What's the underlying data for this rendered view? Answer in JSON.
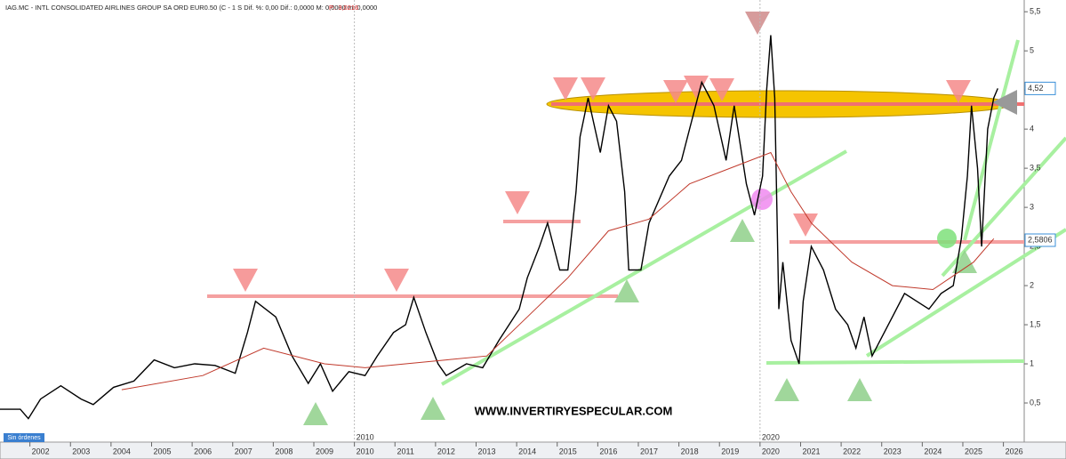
{
  "chart_data": {
    "type": "line",
    "title": "IAG.MC - INTL CONSOLIDATED AIRLINES GROUP SA ORD EUR0.50 (C - 1 S Dif. %: 0,00 Dif.: 0,0000 M: 0,0000 m: 0,0000",
    "price_note": "P.: 3,0216",
    "watermark": "WWW.INVERTIRYESPECULAR.COM",
    "orders": "Sin órdenes",
    "decade_marks": [
      {
        "value": 2010,
        "label": "2010"
      },
      {
        "value": 2020,
        "label": "2020"
      }
    ],
    "xlim": [
      2001,
      2026.25
    ],
    "xticks": [
      2002,
      2003,
      2004,
      2005,
      2006,
      2007,
      2008,
      2009,
      2010,
      2011,
      2012,
      2013,
      2014,
      2015,
      2016,
      2017,
      2018,
      2019,
      2020,
      2021,
      2022,
      2023,
      2024,
      2025,
      2026
    ],
    "ylim": [
      0,
      5.65
    ],
    "yticks": [
      {
        "value": 0.5,
        "label": "0,5"
      },
      1,
      {
        "value": 1.5,
        "label": "1,5"
      },
      2,
      {
        "value": 2.5,
        "label": "2,5"
      },
      3,
      {
        "value": 3.5,
        "label": "3,5"
      },
      4,
      {
        "value": 4.5,
        "label": "4,5"
      },
      5,
      {
        "value": 5.5,
        "label": "5,5"
      }
    ],
    "price_labels": [
      {
        "value": 4.52,
        "label": "4,52",
        "color": "#3a8fd8"
      },
      {
        "value": 2.5806,
        "label": "2,5806",
        "color": "#3a8fd8"
      }
    ],
    "series": [
      {
        "name": "IAG",
        "color": "#000000",
        "x": [
          2001.0,
          2001.5,
          2001.7,
          2002.0,
          2002.5,
          2003.0,
          2003.3,
          2003.8,
          2004.3,
          2004.8,
          2005.3,
          2005.8,
          2006.3,
          2006.8,
          2007.1,
          2007.3,
          2007.8,
          2008.2,
          2008.6,
          2008.9,
          2009.2,
          2009.6,
          2010.0,
          2010.3,
          2010.7,
          2011.0,
          2011.2,
          2011.5,
          2011.8,
          2012.0,
          2012.5,
          2012.9,
          2013.3,
          2013.8,
          2014.0,
          2014.3,
          2014.5,
          2014.8,
          2015.0,
          2015.2,
          2015.3,
          2015.5,
          2015.8,
          2016.0,
          2016.2,
          2016.4,
          2016.5,
          2016.8,
          2017.0,
          2017.5,
          2017.8,
          2018.0,
          2018.3,
          2018.6,
          2018.9,
          2019.1,
          2019.4,
          2019.6,
          2019.8,
          2019.9,
          2020.0,
          2020.1,
          2020.2,
          2020.3,
          2020.5,
          2020.7,
          2020.8,
          2021.0,
          2021.3,
          2021.6,
          2021.9,
          2022.1,
          2022.3,
          2022.5,
          2022.7,
          2023.0,
          2023.3,
          2023.6,
          2023.9,
          2024.2,
          2024.5,
          2024.7,
          2024.85,
          2024.95,
          2025.1,
          2025.2,
          2025.35,
          2025.5,
          2025.6
        ],
        "values": [
          0.42,
          0.42,
          0.3,
          0.55,
          0.72,
          0.55,
          0.48,
          0.7,
          0.78,
          1.05,
          0.95,
          1.0,
          0.98,
          0.88,
          1.4,
          1.8,
          1.6,
          1.1,
          0.75,
          1.0,
          0.65,
          0.9,
          0.85,
          1.1,
          1.4,
          1.5,
          1.85,
          1.4,
          1.0,
          0.85,
          1.0,
          0.95,
          1.3,
          1.7,
          2.1,
          2.5,
          2.8,
          2.2,
          2.2,
          3.2,
          3.9,
          4.4,
          3.7,
          4.3,
          4.1,
          3.2,
          2.2,
          2.2,
          2.8,
          3.4,
          3.6,
          4.0,
          4.6,
          4.3,
          3.6,
          4.3,
          3.3,
          2.9,
          3.4,
          4.5,
          5.2,
          4.4,
          1.7,
          2.3,
          1.3,
          1.0,
          1.8,
          2.5,
          2.2,
          1.7,
          1.5,
          1.2,
          1.6,
          1.1,
          1.3,
          1.6,
          1.9,
          1.8,
          1.7,
          1.9,
          2.0,
          2.6,
          3.4,
          4.3,
          3.5,
          2.5,
          4.0,
          4.4,
          4.52
        ]
      },
      {
        "name": "MA",
        "color": "#c0392b",
        "x": [
          2004,
          2006,
          2007.5,
          2009,
          2010,
          2011,
          2012,
          2013,
          2014,
          2015,
          2016,
          2017,
          2018,
          2019,
          2020,
          2020.5,
          2021,
          2022,
          2023,
          2024,
          2025,
          2025.5
        ],
        "values": [
          0.67,
          0.85,
          1.2,
          1.0,
          0.95,
          1.0,
          1.05,
          1.1,
          1.6,
          2.1,
          2.7,
          2.85,
          3.3,
          3.5,
          3.7,
          3.2,
          2.8,
          2.3,
          2.0,
          1.95,
          2.3,
          2.6
        ]
      }
    ]
  }
}
